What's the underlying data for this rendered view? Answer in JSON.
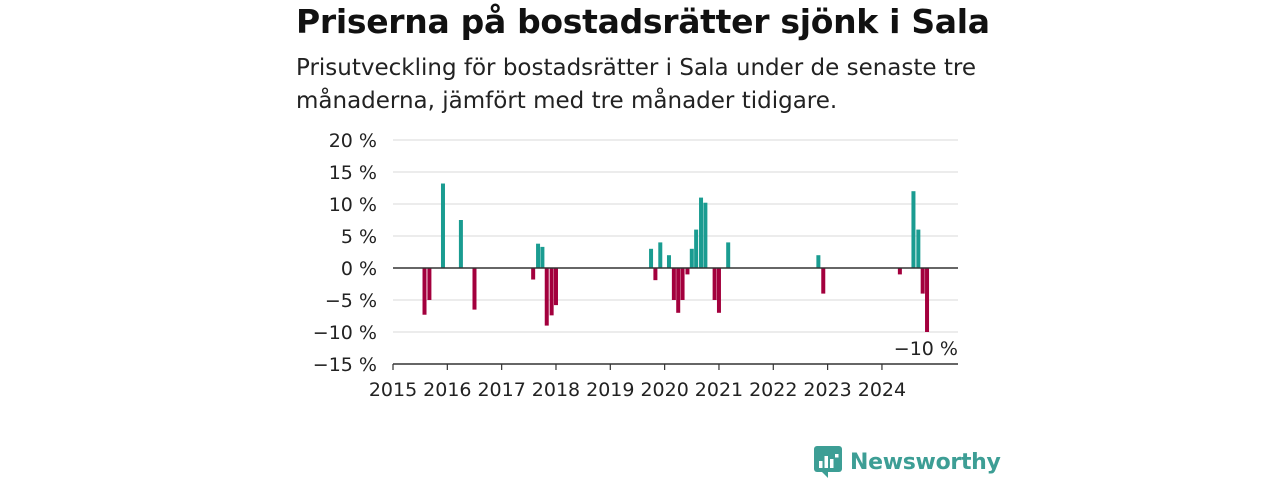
{
  "title": "Priserna på bostadsrätter sjönk i Sala",
  "subtitle": "Prisutveckling för bostadsrätter i Sala under de senaste tre månaderna, jämfört med tre månader tidigare.",
  "brand": {
    "name": "Newsworthy",
    "color": "#3d9e95"
  },
  "colors": {
    "positive": "#1a9c91",
    "negative": "#a3003d",
    "grid": "#d9d9d9",
    "zero_line": "#333333"
  },
  "chart_data": {
    "type": "bar",
    "title": "",
    "xlabel": "",
    "ylabel": "",
    "ylim": [
      -15,
      20
    ],
    "y_ticks": [
      {
        "value": 20,
        "label": "20 %"
      },
      {
        "value": 15,
        "label": "15 %"
      },
      {
        "value": 10,
        "label": "10 %"
      },
      {
        "value": 5,
        "label": "5 %"
      },
      {
        "value": 0,
        "label": "0 %"
      },
      {
        "value": -5,
        "label": "−5 %"
      },
      {
        "value": -10,
        "label": "−10 %"
      },
      {
        "value": -15,
        "label": "−15 %"
      }
    ],
    "x_range": [
      2015.0,
      2025.4
    ],
    "x_ticks": [
      {
        "value": 2015,
        "label": "2015"
      },
      {
        "value": 2016,
        "label": "2016"
      },
      {
        "value": 2017,
        "label": "2017"
      },
      {
        "value": 2018,
        "label": "2018"
      },
      {
        "value": 2019,
        "label": "2019"
      },
      {
        "value": 2020,
        "label": "2020"
      },
      {
        "value": 2021,
        "label": "2021"
      },
      {
        "value": 2022,
        "label": "2022"
      },
      {
        "value": 2023,
        "label": "2023"
      },
      {
        "value": 2024,
        "label": "2024"
      }
    ],
    "grid": true,
    "legend": "none",
    "bars": [
      {
        "x": 2015.58,
        "value": -7.3
      },
      {
        "x": 2015.67,
        "value": -5.0
      },
      {
        "x": 2015.92,
        "value": 13.2
      },
      {
        "x": 2016.25,
        "value": 7.5
      },
      {
        "x": 2016.5,
        "value": -6.5
      },
      {
        "x": 2017.58,
        "value": -1.8
      },
      {
        "x": 2017.67,
        "value": 3.8
      },
      {
        "x": 2017.75,
        "value": 3.3
      },
      {
        "x": 2017.83,
        "value": -9.0
      },
      {
        "x": 2017.92,
        "value": -7.4
      },
      {
        "x": 2018.0,
        "value": -5.8
      },
      {
        "x": 2019.75,
        "value": 3.0
      },
      {
        "x": 2019.83,
        "value": -1.9
      },
      {
        "x": 2019.92,
        "value": 4.0
      },
      {
        "x": 2020.08,
        "value": 2.0
      },
      {
        "x": 2020.17,
        "value": -5.0
      },
      {
        "x": 2020.25,
        "value": -7.0
      },
      {
        "x": 2020.33,
        "value": -5.0
      },
      {
        "x": 2020.42,
        "value": -1.0
      },
      {
        "x": 2020.5,
        "value": 3.0
      },
      {
        "x": 2020.58,
        "value": 6.0
      },
      {
        "x": 2020.67,
        "value": 11.0
      },
      {
        "x": 2020.75,
        "value": 10.2
      },
      {
        "x": 2020.92,
        "value": -5.0
      },
      {
        "x": 2021.0,
        "value": -7.0
      },
      {
        "x": 2021.17,
        "value": 4.0
      },
      {
        "x": 2022.83,
        "value": 2.0
      },
      {
        "x": 2022.92,
        "value": -4.0
      },
      {
        "x": 2024.33,
        "value": -1.0
      },
      {
        "x": 2024.58,
        "value": 12.0
      },
      {
        "x": 2024.67,
        "value": 6.0
      },
      {
        "x": 2024.75,
        "value": -4.0
      },
      {
        "x": 2024.83,
        "value": -10.0
      }
    ],
    "annotations": [
      {
        "text": "−10 %",
        "bar_index": 32
      }
    ]
  }
}
